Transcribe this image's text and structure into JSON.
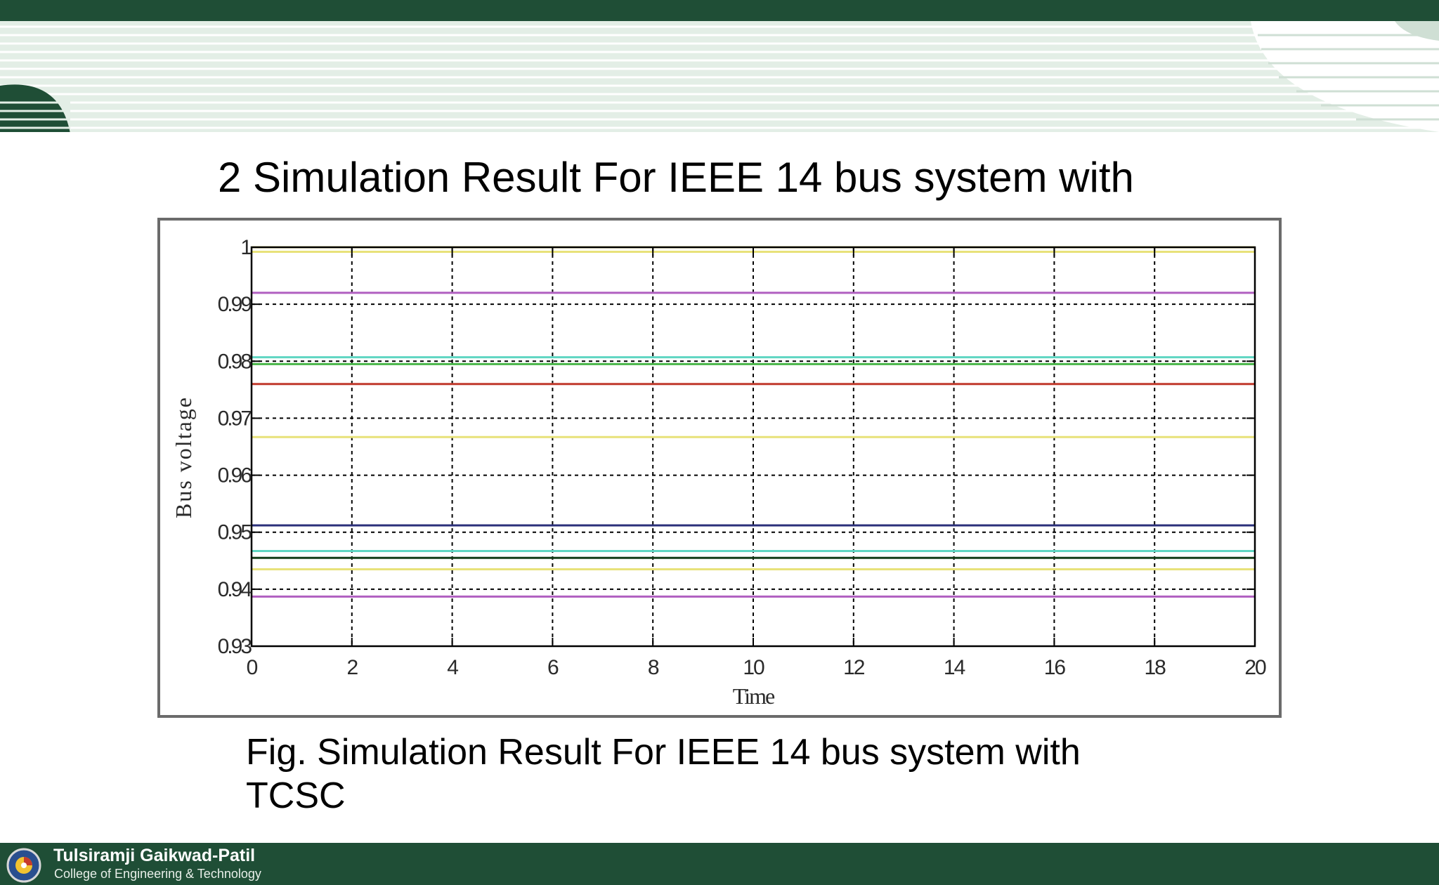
{
  "slide": {
    "title": "2 Simulation Result For IEEE 14 bus system with",
    "caption_line1": "Fig.  Simulation Result For IEEE 14 bus system with",
    "caption_line2": "TCSC"
  },
  "footer": {
    "institution": "Tulsiramji Gaikwad-Patil",
    "subtitle": "College of Engineering & Technology",
    "bar_color": "#1f4e36"
  },
  "chart_data": {
    "type": "line",
    "title": "",
    "xlabel": "Time",
    "ylabel": "Bus voltage",
    "xlim": [
      0,
      20
    ],
    "ylim": [
      0.93,
      1.0
    ],
    "x_ticks": [
      0,
      2,
      4,
      6,
      8,
      10,
      12,
      14,
      16,
      18,
      20
    ],
    "x_tick_labels": [
      "0",
      "2",
      "4",
      "6",
      "8",
      "10",
      "12",
      "14",
      "16",
      "18",
      "20"
    ],
    "y_ticks": [
      0.93,
      0.94,
      0.95,
      0.96,
      0.97,
      0.98,
      0.99,
      1.0
    ],
    "y_tick_labels": [
      "0.93",
      "0.94",
      "0.95",
      "0.96",
      "0.97",
      "0.98",
      "0.99",
      "1"
    ],
    "grid": true,
    "x": [
      0,
      20
    ],
    "series": [
      {
        "values": [
          1.0,
          1.0
        ],
        "color": "#e8e27a"
      },
      {
        "values": [
          0.9992,
          0.9992
        ],
        "color": "#e8e27a"
      },
      {
        "values": [
          0.992,
          0.992
        ],
        "color": "#b05fc0"
      },
      {
        "values": [
          0.9807,
          0.9807
        ],
        "color": "#5fd6c2"
      },
      {
        "values": [
          0.9795,
          0.9795
        ],
        "color": "#49b649"
      },
      {
        "values": [
          0.976,
          0.976
        ],
        "color": "#c0392b"
      },
      {
        "values": [
          0.9667,
          0.9667
        ],
        "color": "#e8e27a"
      },
      {
        "values": [
          0.9512,
          0.9512
        ],
        "color": "#2b2f7a"
      },
      {
        "values": [
          0.9467,
          0.9467
        ],
        "color": "#5fd6c2"
      },
      {
        "values": [
          0.9455,
          0.9455
        ],
        "color": "#123c18"
      },
      {
        "values": [
          0.9435,
          0.9435
        ],
        "color": "#e8e27a"
      },
      {
        "values": [
          0.9387,
          0.9387
        ],
        "color": "#b05fc0"
      }
    ]
  }
}
